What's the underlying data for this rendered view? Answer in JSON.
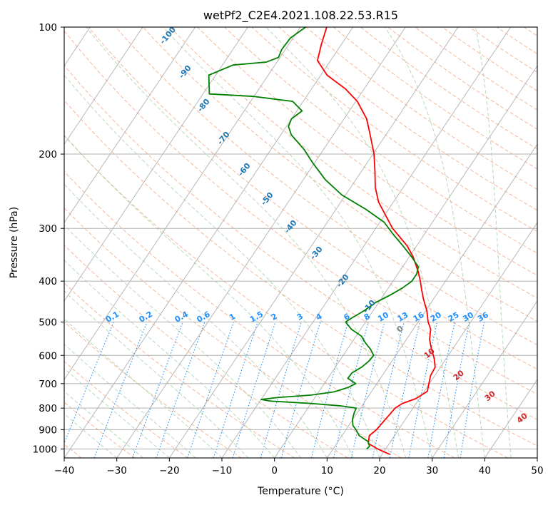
{
  "chart_data": {
    "type": "line",
    "title": "wetPf2_C2E4.2021.108.22.53.R15",
    "xlabel": "Temperature (°C)",
    "ylabel": "Pressure (hPa)",
    "xlim": [
      -40,
      50
    ],
    "ylim": [
      1050,
      100
    ],
    "y_scale": "log",
    "skew": "skew-T log-P",
    "grid": true,
    "x_ticks": [
      "−40",
      "−30",
      "−20",
      "−10",
      "0",
      "10",
      "20",
      "30",
      "40",
      "50"
    ],
    "x_tick_values": [
      -40,
      -30,
      -20,
      -10,
      0,
      10,
      20,
      30,
      40,
      50
    ],
    "y_ticks": [
      "100",
      "200",
      "300",
      "400",
      "500",
      "600",
      "700",
      "800",
      "900",
      "1000"
    ],
    "y_tick_values": [
      100,
      200,
      300,
      400,
      500,
      600,
      700,
      800,
      900,
      1000
    ],
    "series": [
      {
        "role": "temperature",
        "color": "#ff0000",
        "points": [
          {
            "p": 1030,
            "t": 21.5
          },
          {
            "p": 1000,
            "t": 18.5
          },
          {
            "p": 970,
            "t": 16.0
          },
          {
            "p": 930,
            "t": 15.2
          },
          {
            "p": 900,
            "t": 15.8
          },
          {
            "p": 850,
            "t": 16.2
          },
          {
            "p": 800,
            "t": 16.6
          },
          {
            "p": 780,
            "t": 17.4
          },
          {
            "p": 760,
            "t": 19.3
          },
          {
            "p": 730,
            "t": 20.6
          },
          {
            "p": 700,
            "t": 19.9
          },
          {
            "p": 670,
            "t": 19.2
          },
          {
            "p": 640,
            "t": 19.0
          },
          {
            "p": 610,
            "t": 17.7
          },
          {
            "p": 580,
            "t": 16.0
          },
          {
            "p": 550,
            "t": 14.4
          },
          {
            "p": 520,
            "t": 13.3
          },
          {
            "p": 500,
            "t": 11.9
          },
          {
            "p": 470,
            "t": 10.2
          },
          {
            "p": 440,
            "t": 8.0
          },
          {
            "p": 420,
            "t": 6.6
          },
          {
            "p": 400,
            "t": 5.2
          },
          {
            "p": 380,
            "t": 3.6
          },
          {
            "p": 350,
            "t": 0.7
          },
          {
            "p": 330,
            "t": -1.8
          },
          {
            "p": 300,
            "t": -6.8
          },
          {
            "p": 280,
            "t": -9.7
          },
          {
            "p": 260,
            "t": -12.8
          },
          {
            "p": 240,
            "t": -15.3
          },
          {
            "p": 220,
            "t": -17.4
          },
          {
            "p": 200,
            "t": -19.8
          },
          {
            "p": 180,
            "t": -23.0
          },
          {
            "p": 165,
            "t": -25.7
          },
          {
            "p": 150,
            "t": -29.7
          },
          {
            "p": 140,
            "t": -33.6
          },
          {
            "p": 130,
            "t": -38.8
          },
          {
            "p": 120,
            "t": -42.5
          },
          {
            "p": 110,
            "t": -43.8
          },
          {
            "p": 100,
            "t": -45.0
          }
        ]
      },
      {
        "role": "dewpoint",
        "color": "#008000",
        "points": [
          {
            "p": 1000,
            "t": 16.4
          },
          {
            "p": 985,
            "t": 16.6
          },
          {
            "p": 960,
            "t": 15.7
          },
          {
            "p": 930,
            "t": 13.3
          },
          {
            "p": 900,
            "t": 11.9
          },
          {
            "p": 880,
            "t": 10.8
          },
          {
            "p": 850,
            "t": 9.9
          },
          {
            "p": 820,
            "t": 9.4
          },
          {
            "p": 800,
            "t": 9.2
          },
          {
            "p": 790,
            "t": 5.8
          },
          {
            "p": 780,
            "t": 0.0
          },
          {
            "p": 770,
            "t": -8.0
          },
          {
            "p": 763,
            "t": -10.0
          },
          {
            "p": 755,
            "t": -7.0
          },
          {
            "p": 745,
            "t": -1.0
          },
          {
            "p": 732,
            "t": 2.9
          },
          {
            "p": 715,
            "t": 5.0
          },
          {
            "p": 700,
            "t": 6.0
          },
          {
            "p": 680,
            "t": 3.8
          },
          {
            "p": 660,
            "t": 3.9
          },
          {
            "p": 640,
            "t": 5.0
          },
          {
            "p": 620,
            "t": 5.6
          },
          {
            "p": 600,
            "t": 5.8
          },
          {
            "p": 580,
            "t": 4.4
          },
          {
            "p": 560,
            "t": 2.6
          },
          {
            "p": 540,
            "t": 1.0
          },
          {
            "p": 520,
            "t": -1.8
          },
          {
            "p": 500,
            "t": -3.8
          },
          {
            "p": 490,
            "t": -3.2
          },
          {
            "p": 470,
            "t": -1.7
          },
          {
            "p": 450,
            "t": -0.6
          },
          {
            "p": 430,
            "t": 1.4
          },
          {
            "p": 415,
            "t": 2.7
          },
          {
            "p": 400,
            "t": 3.6
          },
          {
            "p": 385,
            "t": 3.6
          },
          {
            "p": 370,
            "t": 3.0
          },
          {
            "p": 350,
            "t": 0.4
          },
          {
            "p": 330,
            "t": -2.6
          },
          {
            "p": 310,
            "t": -5.9
          },
          {
            "p": 290,
            "t": -9.2
          },
          {
            "p": 270,
            "t": -14.4
          },
          {
            "p": 250,
            "t": -20.7
          },
          {
            "p": 230,
            "t": -25.8
          },
          {
            "p": 210,
            "t": -30.3
          },
          {
            "p": 195,
            "t": -33.7
          },
          {
            "p": 180,
            "t": -38.0
          },
          {
            "p": 172,
            "t": -39.6
          },
          {
            "p": 165,
            "t": -40.0
          },
          {
            "p": 158,
            "t": -39.0
          },
          {
            "p": 150,
            "t": -42.0
          },
          {
            "p": 146,
            "t": -50.0
          },
          {
            "p": 144,
            "t": -58.8
          },
          {
            "p": 130,
            "t": -61.3
          },
          {
            "p": 123,
            "t": -58.0
          },
          {
            "p": 121,
            "t": -52.0
          },
          {
            "p": 118,
            "t": -50.3
          },
          {
            "p": 113,
            "t": -50.7
          },
          {
            "p": 106,
            "t": -50.5
          },
          {
            "p": 100,
            "t": -49.0
          }
        ]
      }
    ],
    "mixing_ratio_labels": [
      "0.1",
      "0.2",
      "0.4",
      "0.6",
      "1",
      "1.5",
      "2",
      "3",
      "4",
      "6",
      "8",
      "10",
      "13",
      "16",
      "20",
      "25",
      "30",
      "36"
    ],
    "mixing_ratio_values": [
      0.1,
      0.2,
      0.4,
      0.6,
      1,
      1.5,
      2,
      3,
      4,
      6,
      8,
      10,
      13,
      16,
      20,
      25,
      30,
      36
    ],
    "moist_adiabat_labels": [
      "-100",
      "-90",
      "-80",
      "-70",
      "-60",
      "-50",
      "-40",
      "-30",
      "-20",
      "-10"
    ],
    "moist_adiabat_values": [
      -100,
      -90,
      -80,
      -70,
      -60,
      -50,
      -40,
      -30,
      -20,
      -10
    ],
    "dry_adiabat_labels": [
      "0",
      "10",
      "20",
      "30",
      "40"
    ],
    "dry_adiabat_values": [
      0,
      10,
      20,
      30,
      40
    ],
    "colors": {
      "temperature": "#ff0000",
      "dewpoint": "#008000",
      "grid": "#b0b0b0",
      "dry_adiabat": "#f4a582",
      "moist_adiabat": "#99cc99",
      "mixing_ratio": "#1e90ff",
      "moist_label": "#1f77b4",
      "dry_label": "#d62728",
      "zero_label": "#7f7f7f"
    }
  }
}
